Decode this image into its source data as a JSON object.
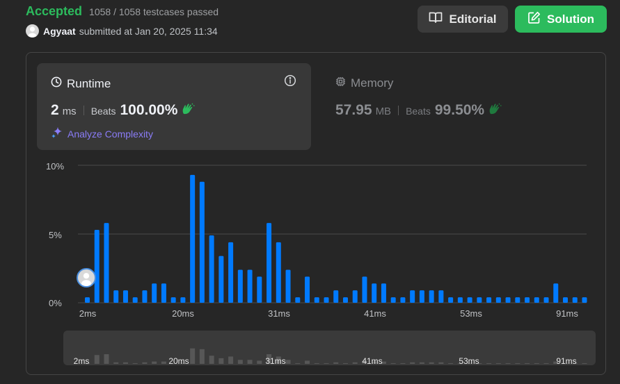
{
  "header": {
    "status": "Accepted",
    "testcases": "1058 / 1058 testcases passed",
    "user": "Agyaat",
    "submitted": "submitted at Jan 20, 2025 11:34"
  },
  "buttons": {
    "editorial": "Editorial",
    "solution": "Solution"
  },
  "runtime": {
    "title": "Runtime",
    "value": "2",
    "unit": "ms",
    "beats_label": "Beats",
    "beats": "100.00%",
    "analyze": "Analyze Complexity"
  },
  "memory": {
    "title": "Memory",
    "value": "57.95",
    "unit": "MB",
    "beats_label": "Beats",
    "beats": "99.50%"
  },
  "colors": {
    "accent": "#2cbb5d",
    "bar": "#007aff",
    "bar_dim": "#575757",
    "purple": "#8a7cf7"
  },
  "chart_data": {
    "type": "bar",
    "ylabels": [
      "10%",
      "5%",
      "0%"
    ],
    "ylim": [
      0,
      10
    ],
    "xlabels": [
      "2ms",
      "20ms",
      "31ms",
      "41ms",
      "53ms",
      "91ms"
    ],
    "brush_labels": [
      "2ms",
      "20ms",
      "31ms",
      "41ms",
      "53ms",
      "91ms"
    ],
    "highlight_index": 0,
    "values": [
      0.4,
      5.3,
      5.8,
      0.9,
      0.9,
      0.4,
      0.9,
      1.4,
      1.4,
      0.4,
      0.4,
      9.3,
      8.8,
      4.9,
      3.4,
      4.4,
      2.4,
      2.4,
      1.9,
      5.8,
      4.4,
      2.4,
      0.4,
      1.9,
      0.4,
      0.4,
      0.9,
      0.4,
      0.9,
      1.9,
      1.4,
      1.4,
      0.4,
      0.4,
      0.9,
      0.9,
      0.9,
      0.9,
      0.4,
      0.4,
      0.4,
      0.4,
      0.4,
      0.4,
      0.4,
      0.4,
      0.4,
      0.4,
      0.4,
      1.4,
      0.4,
      0.4,
      0.4
    ]
  }
}
